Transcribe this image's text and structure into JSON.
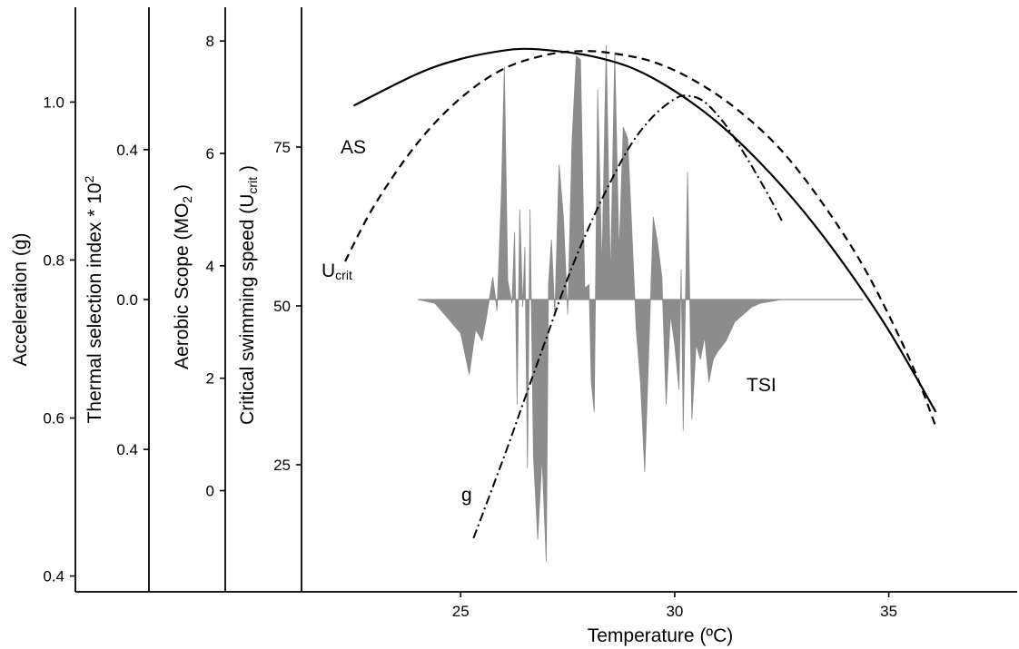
{
  "chart_data": {
    "type": "line",
    "x_axis": {
      "label": "Temperature (ºC)",
      "range": [
        16,
        38
      ],
      "ticks": [
        25,
        30,
        35
      ],
      "tick_labels": [
        "25",
        "30",
        "35"
      ]
    },
    "y_axes": [
      {
        "id": "acceleration",
        "label": "Acceleration (g)",
        "range": [
          0.38,
          1.12
        ],
        "ticks": [
          0.4,
          0.6,
          0.8,
          1.0
        ],
        "tick_labels": [
          "0.4",
          "0.6",
          "0.8",
          "1.0"
        ]
      },
      {
        "id": "tsi",
        "label": "Thermal selection index * 10",
        "label_sup": "2",
        "range": [
          -0.78,
          0.78
        ],
        "ticks": [
          -0.4,
          0.0,
          0.4
        ],
        "tick_labels": [
          "0.4",
          "0.0",
          "0.4"
        ]
      },
      {
        "id": "aerobic_scope",
        "label": "Aerobic Scope  (MO",
        "label_sub": "2",
        "label_end": " )",
        "range": [
          -1.8,
          8.6
        ],
        "ticks": [
          0,
          2,
          4,
          6,
          8
        ],
        "tick_labels": [
          "0",
          "2",
          "4",
          "6",
          "8"
        ]
      },
      {
        "id": "ucrit",
        "label": "Critical swimming speed (U",
        "label_sub": "crit",
        "label_end": " )",
        "range": [
          5,
          97
        ],
        "ticks": [
          25,
          50,
          75
        ],
        "tick_labels": [
          "25",
          "50",
          "75"
        ]
      }
    ],
    "series": [
      {
        "name": "AS",
        "style": "solid",
        "axis": "aerobic_scope",
        "x": [
          22.5,
          24.0,
          25.0,
          26.0,
          26.5,
          27.0,
          28.0,
          29.0,
          30.0,
          31.0,
          32.0,
          33.0,
          34.0,
          35.0,
          36.1
        ],
        "y": [
          6.85,
          7.42,
          7.68,
          7.83,
          7.86,
          7.84,
          7.74,
          7.52,
          7.11,
          6.55,
          5.83,
          4.98,
          3.98,
          2.85,
          1.4
        ]
      },
      {
        "name": "U",
        "name_sub": "crit",
        "style": "dashed",
        "axis": "ucrit",
        "x": [
          22.3,
          23.0,
          24.0,
          25.0,
          26.0,
          27.0,
          27.8,
          28.5,
          29.5,
          30.5,
          31.5,
          32.5,
          33.5,
          34.5,
          35.5,
          36.1
        ],
        "y": [
          57.0,
          66.0,
          75.7,
          82.7,
          87.3,
          89.5,
          90.1,
          89.8,
          88.4,
          85.3,
          80.7,
          74.4,
          65.7,
          55.1,
          41.4,
          31.0
        ]
      },
      {
        "name": "g",
        "style": "dash-dot",
        "axis": "acceleration",
        "x": [
          25.3,
          26.0,
          26.5,
          27.0,
          27.5,
          28.0,
          28.5,
          29.0,
          29.5,
          30.0,
          30.3,
          30.7,
          31.2,
          31.7,
          32.2,
          32.5
        ],
        "y": [
          0.448,
          0.549,
          0.625,
          0.701,
          0.777,
          0.842,
          0.899,
          0.948,
          0.982,
          1.004,
          1.008,
          1.0,
          0.97,
          0.928,
          0.881,
          0.85
        ]
      }
    ],
    "tsi": {
      "name": "TSI",
      "type": "area",
      "axis": "tsi",
      "baseline": 0,
      "x": [
        24.0,
        24.4,
        24.7,
        25.0,
        25.2,
        25.35,
        25.5,
        25.6,
        25.75,
        25.85,
        25.95,
        26.02,
        26.1,
        26.2,
        26.26,
        26.32,
        26.38,
        26.45,
        26.5,
        26.56,
        26.62,
        26.7,
        26.8,
        26.9,
        27.0,
        27.05,
        27.12,
        27.2,
        27.3,
        27.4,
        27.5,
        27.6,
        27.7,
        27.8,
        27.9,
        28.0,
        28.05,
        28.12,
        28.2,
        28.3,
        28.4,
        28.5,
        28.6,
        28.7,
        28.8,
        28.9,
        29.0,
        29.1,
        29.2,
        29.3,
        29.4,
        29.5,
        29.6,
        29.7,
        29.8,
        29.9,
        30.0,
        30.1,
        30.15,
        30.2,
        30.3,
        30.4,
        30.5,
        30.6,
        30.7,
        30.8,
        30.9,
        31.0,
        31.2,
        31.4,
        31.6,
        31.8,
        32.0,
        32.5,
        33.0,
        33.5,
        34.0,
        34.4
      ],
      "y": [
        0.0,
        -0.01,
        -0.05,
        -0.09,
        -0.2,
        -0.08,
        -0.11,
        -0.05,
        0.06,
        -0.03,
        0.28,
        0.62,
        0.05,
        -0.01,
        0.18,
        -0.28,
        0.24,
        -0.02,
        0.14,
        -0.45,
        0.24,
        -0.42,
        -0.64,
        -0.42,
        -0.7,
        0.04,
        0.16,
        -0.04,
        0.36,
        0.22,
        -0.04,
        0.42,
        0.65,
        0.64,
        0.03,
        0.04,
        -0.22,
        -0.3,
        0.56,
        0.08,
        0.68,
        0.05,
        0.66,
        0.12,
        0.46,
        0.43,
        0.18,
        -0.08,
        -0.22,
        -0.46,
        -0.12,
        0.22,
        0.15,
        0.06,
        -0.28,
        -0.04,
        -0.12,
        -0.24,
        0.08,
        -0.35,
        0.34,
        -0.32,
        -0.12,
        -0.16,
        -0.1,
        -0.22,
        -0.16,
        -0.14,
        -0.11,
        -0.06,
        -0.04,
        -0.02,
        -0.01,
        0.0,
        0.0,
        0.0,
        0.0,
        0.0
      ]
    }
  }
}
